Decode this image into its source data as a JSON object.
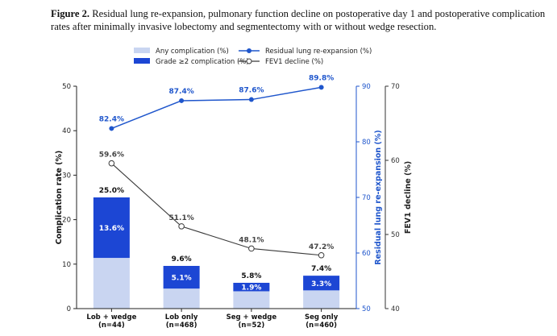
{
  "caption": {
    "label": "Figure 2.",
    "text": "Residual lung re-expansion, pulmonary function decline on postoperative day 1 and postoperative complication rates after minimally invasive lobectomy and segmentectomy with or without wedge resection."
  },
  "chart_data": {
    "type": "bar",
    "categories": [
      "Lob + wedge\n(n=44)",
      "Lob only\n(n=468)",
      "Seg + wedge\n(n=52)",
      "Seg only\n(n=460)"
    ],
    "series": [
      {
        "name": "Any complication (%)",
        "type": "bar",
        "axis": "left",
        "values": [
          25.0,
          9.6,
          5.8,
          7.4
        ],
        "labels": [
          "25.0%",
          "9.6%",
          "5.8%",
          "7.4%"
        ],
        "color": "#c9d5f1"
      },
      {
        "name": "Grade ≥2 complication (%)",
        "type": "bar",
        "axis": "left",
        "values": [
          13.6,
          5.1,
          1.9,
          3.3
        ],
        "labels": [
          "13.6%",
          "5.1%",
          "1.9%",
          "3.3%"
        ],
        "color": "#1c46d4"
      },
      {
        "name": "Residual lung re-expansion (%)",
        "type": "line",
        "axis": "right1",
        "values": [
          82.4,
          87.4,
          87.6,
          89.8
        ],
        "labels": [
          "82.4%",
          "87.4%",
          "87.6%",
          "89.8%"
        ],
        "color": "#1f56cc"
      },
      {
        "name": "FEV1 decline (%)",
        "type": "line",
        "axis": "right2",
        "values": [
          59.6,
          51.1,
          48.1,
          47.2
        ],
        "labels": [
          "59.6%",
          "51.1%",
          "48.1%",
          "47.2%"
        ],
        "color": "#3a3a3a"
      }
    ],
    "ylabel": "Complication rate (%)",
    "ylim": [
      0,
      50
    ],
    "yticks": [
      "0",
      "10",
      "20",
      "30",
      "40",
      "50"
    ],
    "y2label": "Residual lung re-expansion (%)",
    "y2lim": [
      50,
      90
    ],
    "y2ticks": [
      "50",
      "60",
      "70",
      "80",
      "90"
    ],
    "y3label": "FEV1 decline (%)",
    "y3lim": [
      40,
      70
    ],
    "y3ticks": [
      "40",
      "50",
      "60",
      "70"
    ],
    "legend_position": "top",
    "grid": false
  }
}
